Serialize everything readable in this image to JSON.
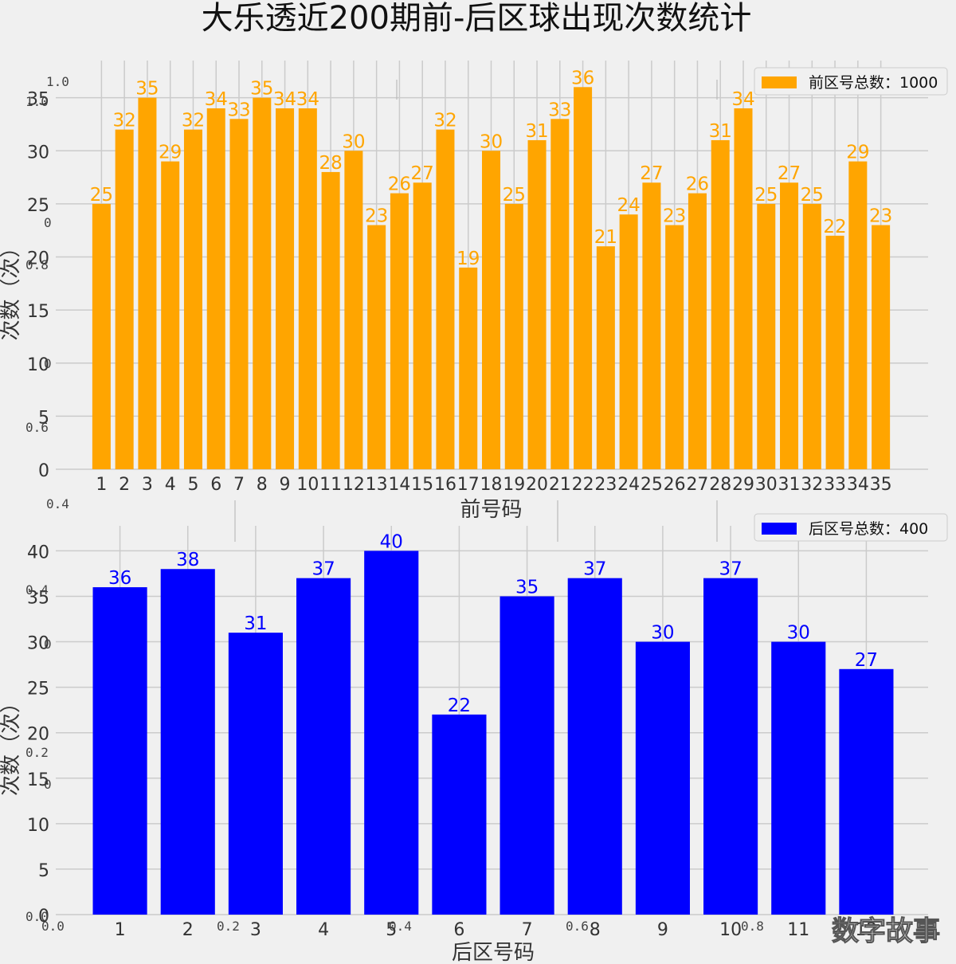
{
  "title": "大乐透近200期前-后区球出现次数统计",
  "watermark": "数字故事",
  "ghost_ticks": {
    "top": [
      "1.0",
      "1.0",
      "0",
      "0.8",
      "0",
      "0.6",
      "0.4"
    ],
    "bottom": [
      "0.4",
      "0",
      "0.2",
      "0",
      "0.0",
      "0.0",
      "0.2",
      "0.4",
      "0.6",
      "0.8"
    ]
  },
  "chart_data": [
    {
      "type": "bar",
      "title": "",
      "xlabel": "前号码",
      "ylabel": "次数（次）",
      "ylim": [
        0,
        37
      ],
      "yticks": [
        0,
        5,
        10,
        15,
        20,
        25,
        30,
        35
      ],
      "grid": true,
      "legend_position": "top-right",
      "color": "#ffa500",
      "label_color": "#ffa500",
      "categories": [
        "1",
        "2",
        "3",
        "4",
        "5",
        "6",
        "7",
        "8",
        "9",
        "10",
        "11",
        "12",
        "13",
        "14",
        "15",
        "16",
        "17",
        "18",
        "19",
        "20",
        "21",
        "22",
        "23",
        "24",
        "25",
        "26",
        "27",
        "28",
        "29",
        "30",
        "31",
        "32",
        "33",
        "34",
        "35"
      ],
      "series": [
        {
          "name": "前区号总数：1000",
          "values": [
            25,
            32,
            35,
            29,
            32,
            34,
            33,
            35,
            34,
            34,
            28,
            30,
            23,
            26,
            27,
            32,
            19,
            30,
            25,
            31,
            33,
            36,
            21,
            24,
            27,
            23,
            26,
            31,
            34,
            25,
            27,
            25,
            22,
            29,
            23
          ]
        }
      ]
    },
    {
      "type": "bar",
      "title": "",
      "xlabel": "后区号码",
      "ylabel": "次数（次）",
      "ylim": [
        0,
        41
      ],
      "yticks": [
        0,
        5,
        10,
        15,
        20,
        25,
        30,
        35,
        40
      ],
      "grid": true,
      "legend_position": "top-right",
      "color": "#0000ff",
      "label_color": "#0000ff",
      "categories": [
        "1",
        "2",
        "3",
        "4",
        "5",
        "6",
        "7",
        "8",
        "9",
        "10",
        "11",
        "12"
      ],
      "series": [
        {
          "name": "后区号总数：400",
          "values": [
            36,
            38,
            31,
            37,
            40,
            22,
            35,
            37,
            30,
            37,
            30,
            27
          ]
        }
      ]
    }
  ]
}
